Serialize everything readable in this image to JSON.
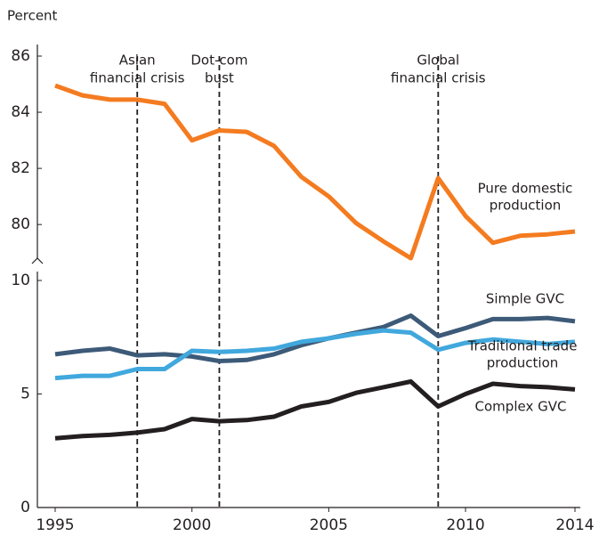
{
  "chart_data": [
    {
      "type": "line",
      "ylabel": "Percent",
      "x": [
        1995,
        1996,
        1997,
        1998,
        1999,
        2000,
        2001,
        2002,
        2003,
        2004,
        2005,
        2006,
        2007,
        2008,
        2009,
        2010,
        2011,
        2012,
        2013,
        2014
      ],
      "xlim": [
        1995,
        2014
      ],
      "ylim": [
        78.8,
        86
      ],
      "yticks": [
        80,
        82,
        84,
        86
      ],
      "series": [
        {
          "label": [
            "Pure domestic",
            "production"
          ],
          "color": "#f47b20",
          "values": [
            84.95,
            84.6,
            84.45,
            84.45,
            84.3,
            83.0,
            83.35,
            83.3,
            82.8,
            81.7,
            81.0,
            80.05,
            79.4,
            78.8,
            81.65,
            80.3,
            79.35,
            79.6,
            79.65,
            79.75
          ]
        }
      ],
      "annotations": [
        {
          "x": 1998,
          "text": [
            "Asian",
            "financial crisis"
          ]
        },
        {
          "x": 2001,
          "text": [
            "Dot-com",
            "bust"
          ]
        },
        {
          "x": 2009,
          "text": [
            "Global",
            "financial crisis"
          ]
        }
      ]
    },
    {
      "type": "line",
      "x": [
        1995,
        1996,
        1997,
        1998,
        1999,
        2000,
        2001,
        2002,
        2003,
        2004,
        2005,
        2006,
        2007,
        2008,
        2009,
        2010,
        2011,
        2012,
        2013,
        2014
      ],
      "xlim": [
        1995,
        2014
      ],
      "xticks": [
        1995,
        2000,
        2005,
        2010,
        2014
      ],
      "ylim": [
        0,
        10
      ],
      "yticks": [
        0,
        5,
        10
      ],
      "series": [
        {
          "label": [
            "Simple GVC"
          ],
          "color": "#3d5a78",
          "values": [
            6.75,
            6.9,
            7.0,
            6.7,
            6.75,
            6.65,
            6.45,
            6.5,
            6.75,
            7.15,
            7.45,
            7.7,
            7.95,
            8.45,
            7.55,
            7.9,
            8.3,
            8.3,
            8.35,
            8.2
          ]
        },
        {
          "label": [
            "Traditional trade",
            "production"
          ],
          "color": "#41a8dd",
          "values": [
            5.7,
            5.8,
            5.8,
            6.1,
            6.1,
            6.9,
            6.85,
            6.9,
            7.0,
            7.3,
            7.45,
            7.65,
            7.8,
            7.7,
            6.95,
            7.25,
            7.4,
            7.3,
            7.2,
            7.3
          ]
        },
        {
          "label": [
            "Complex GVC"
          ],
          "color": "#231f20",
          "values": [
            3.05,
            3.15,
            3.2,
            3.3,
            3.45,
            3.9,
            3.8,
            3.85,
            4.0,
            4.45,
            4.65,
            5.05,
            5.3,
            5.55,
            4.45,
            5.0,
            5.45,
            5.35,
            5.3,
            5.2
          ]
        }
      ]
    }
  ]
}
